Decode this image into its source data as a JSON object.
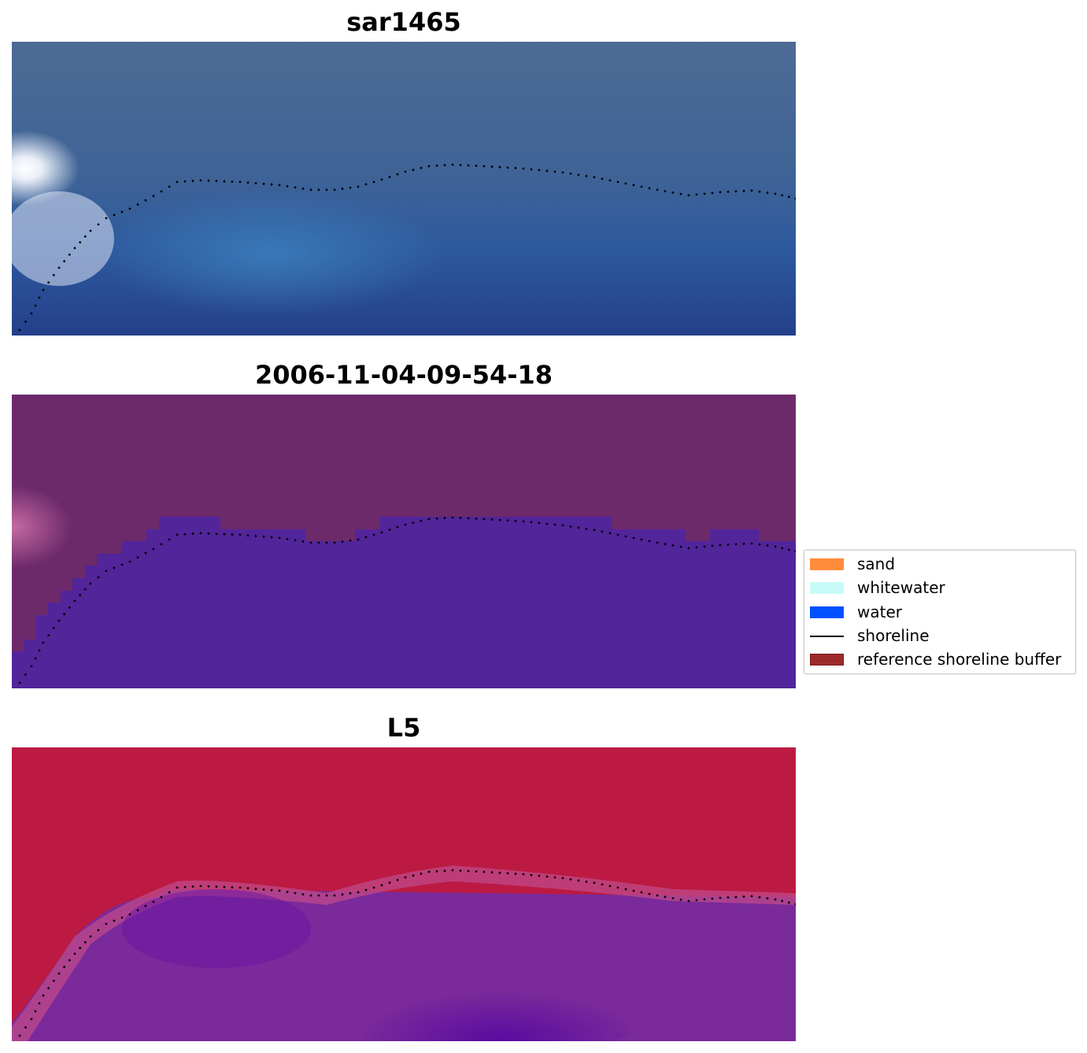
{
  "panels": [
    {
      "title": "sar1465"
    },
    {
      "title": "2006-11-04-09-54-18"
    },
    {
      "title": "L5"
    }
  ],
  "legend": {
    "items": [
      {
        "label": "sand",
        "kind": "patch",
        "color": "#ff8c3a"
      },
      {
        "label": "whitewater",
        "kind": "patch",
        "color": "#c7fbf8"
      },
      {
        "label": "water",
        "kind": "patch",
        "color": "#0050ff"
      },
      {
        "label": "shoreline",
        "kind": "line",
        "color": "#000000"
      },
      {
        "label": "reference shoreline buffer",
        "kind": "patch",
        "color": "#9e2b2b"
      }
    ]
  },
  "colors": {
    "sar_water": "#2a5aa0",
    "sar_sky": "#4a6a96",
    "classified_land": "#6d2a6a",
    "classified_water": "#52259a",
    "l5_land": "#be1a44",
    "l5_water": "#7a2a9a"
  }
}
